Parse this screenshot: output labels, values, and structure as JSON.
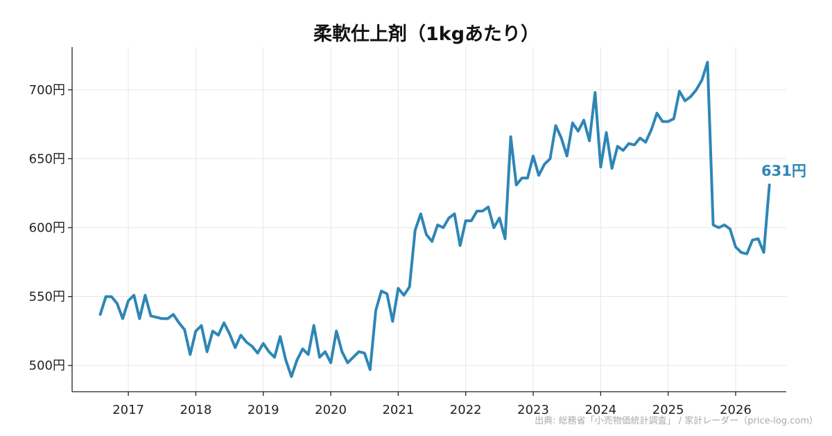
{
  "source_note": "出典: 総務省「小売物価統計調査」 / 家計レーダー（price-log.com）",
  "chart_data": {
    "type": "line",
    "title": "柔軟仕上剤（1kgあたり）",
    "xlabel": "",
    "ylabel": "",
    "ylim": [
      481,
      731
    ],
    "xlim": [
      "2016-03",
      "2026-10"
    ],
    "y_ticks": [
      500,
      550,
      600,
      650,
      700
    ],
    "y_tick_labels": [
      "500円",
      "550円",
      "600円",
      "650円",
      "700円"
    ],
    "x_ticks": [
      "2017-01",
      "2018-01",
      "2019-01",
      "2020-01",
      "2021-01",
      "2022-01",
      "2023-01",
      "2024-01",
      "2025-01",
      "2026-01"
    ],
    "x_tick_labels": [
      "2017",
      "2018",
      "2019",
      "2020",
      "2021",
      "2022",
      "2023",
      "2024",
      "2025",
      "2026"
    ],
    "grid": true,
    "color": "#2e86b5",
    "end_label": "631円",
    "series": [
      {
        "x": [
          "2016-08",
          "2016-09",
          "2016-10",
          "2016-11",
          "2016-12",
          "2017-01",
          "2017-02",
          "2017-03",
          "2017-04",
          "2017-05",
          "2017-06",
          "2017-07",
          "2017-08",
          "2017-09",
          "2017-10",
          "2017-11",
          "2017-12",
          "2018-01",
          "2018-02",
          "2018-03",
          "2018-04",
          "2018-05",
          "2018-06",
          "2018-07",
          "2018-08",
          "2018-09",
          "2018-10",
          "2018-11",
          "2018-12",
          "2019-01",
          "2019-02",
          "2019-03",
          "2019-04",
          "2019-05",
          "2019-06",
          "2019-07",
          "2019-08",
          "2019-09",
          "2019-10",
          "2019-11",
          "2019-12",
          "2020-01",
          "2020-02",
          "2020-03",
          "2020-04",
          "2020-05",
          "2020-06",
          "2020-07",
          "2020-08",
          "2020-09",
          "2020-10",
          "2020-11",
          "2020-12",
          "2021-01",
          "2021-02",
          "2021-03",
          "2021-04",
          "2021-05",
          "2021-06",
          "2021-07",
          "2021-08",
          "2021-09",
          "2021-10",
          "2021-11",
          "2021-12",
          "2022-01",
          "2022-02",
          "2022-03",
          "2022-04",
          "2022-05",
          "2022-06",
          "2022-07",
          "2022-08",
          "2022-09",
          "2022-10",
          "2022-11",
          "2022-12",
          "2023-01",
          "2023-02",
          "2023-03",
          "2023-04",
          "2023-05",
          "2023-06",
          "2023-07",
          "2023-08",
          "2023-09",
          "2023-10",
          "2023-11",
          "2023-12",
          "2024-01",
          "2024-02",
          "2024-03",
          "2024-04",
          "2024-05",
          "2024-06",
          "2024-07",
          "2024-08",
          "2024-09",
          "2024-10",
          "2024-11",
          "2024-12",
          "2025-01",
          "2025-02",
          "2025-03",
          "2025-04",
          "2025-05",
          "2025-06",
          "2025-07",
          "2025-08",
          "2025-09",
          "2025-10",
          "2025-11",
          "2025-12",
          "2026-01",
          "2026-02",
          "2026-03",
          "2026-04",
          "2026-05",
          "2026-06",
          "2026-07"
        ],
        "values": [
          537,
          550,
          550,
          545,
          534,
          547,
          551,
          534,
          551,
          536,
          535,
          534,
          534,
          537,
          531,
          526,
          508,
          525,
          529,
          510,
          525,
          522,
          531,
          523,
          513,
          522,
          517,
          514,
          509,
          516,
          510,
          506,
          521,
          504,
          492,
          504,
          512,
          508,
          529,
          506,
          510,
          502,
          525,
          510,
          502,
          506,
          510,
          509,
          497,
          540,
          554,
          552,
          532,
          556,
          551,
          557,
          598,
          610,
          595,
          590,
          602,
          600,
          607,
          610,
          587,
          605,
          605,
          612,
          612,
          615,
          600,
          607,
          592,
          666,
          631,
          636,
          636,
          652,
          638,
          646,
          650,
          674,
          665,
          652,
          676,
          670,
          678,
          663,
          698,
          644,
          669,
          643,
          659,
          656,
          661,
          660,
          665,
          662,
          671,
          683,
          677,
          677,
          679,
          699,
          692,
          695,
          700,
          707,
          720,
          602,
          600,
          602,
          599,
          586,
          582,
          581,
          591,
          592,
          582,
          631
        ]
      }
    ]
  }
}
